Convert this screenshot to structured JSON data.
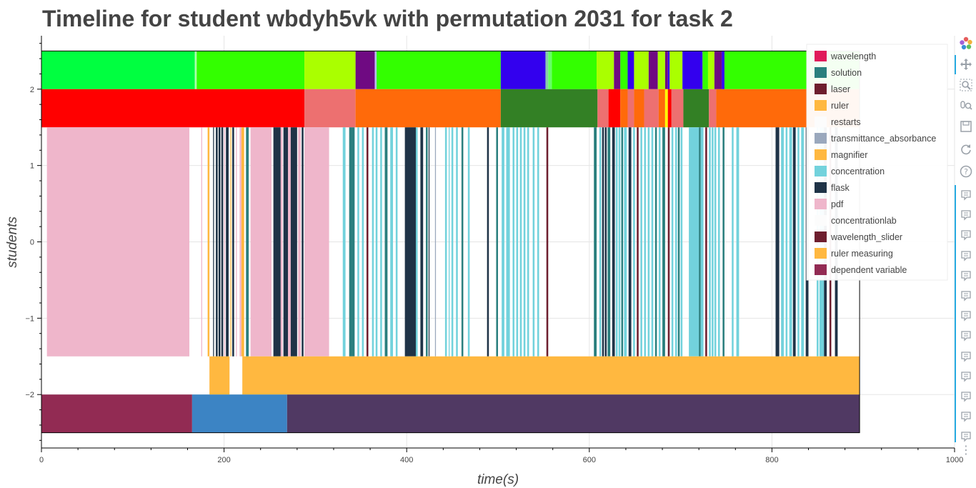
{
  "title": "Timeline for student wbdyh5vk with permutation 2031 for task 2",
  "chart_data": {
    "type": "bar",
    "title": "Timeline for student wbdyh5vk with permutation 2031 for task 2",
    "xlabel": "time(s)",
    "ylabel": "students",
    "xlim": [
      0,
      1000
    ],
    "ylim": [
      -2.7,
      2.7
    ],
    "x_ticks": [
      0,
      200,
      400,
      600,
      800,
      1000
    ],
    "y_ticks": [
      -2,
      -1,
      0,
      1,
      2
    ],
    "grid": true,
    "legend_position": "top-right",
    "legend": [
      {
        "label": "wavelength",
        "color": "#e01a5a"
      },
      {
        "label": "solution",
        "color": "#2a7f7e"
      },
      {
        "label": "laser",
        "color": "#6e1e2e"
      },
      {
        "label": "ruler",
        "color": "#ffb840"
      },
      {
        "label": "restarts",
        "color": "#fcfcfc"
      },
      {
        "label": "transmittance_absorbance",
        "color": "#9aa8bd"
      },
      {
        "label": "magnifier",
        "color": "#ffb840"
      },
      {
        "label": "concentration",
        "color": "#72d2dc"
      },
      {
        "label": "flask",
        "color": "#1f3347"
      },
      {
        "label": "pdf",
        "color": "#efb6cb"
      },
      {
        "label": "concentrationlab",
        "color": "#fcfcfc"
      },
      {
        "label": "wavelength_slider",
        "color": "#6e1e2e"
      },
      {
        "label": "ruler measuring",
        "color": "#ffb840"
      },
      {
        "label": "dependent variable",
        "color": "#922b53"
      }
    ],
    "bands": [
      {
        "name": "top",
        "y": [
          2.0,
          2.5
        ],
        "segments": [
          {
            "start": 0,
            "end": 168,
            "color": "#00ff40"
          },
          {
            "start": 168,
            "end": 170,
            "color": "#aaffaa"
          },
          {
            "start": 170,
            "end": 288,
            "color": "#33ff00"
          },
          {
            "start": 288,
            "end": 344,
            "color": "#aaff00"
          },
          {
            "start": 344,
            "end": 365,
            "color": "#6f0a82"
          },
          {
            "start": 365,
            "end": 367,
            "color": "#bbbbff"
          },
          {
            "start": 367,
            "end": 503,
            "color": "#33ff00"
          },
          {
            "start": 503,
            "end": 552,
            "color": "#3300ee"
          },
          {
            "start": 552,
            "end": 555,
            "color": "#88ccaa"
          },
          {
            "start": 555,
            "end": 559,
            "color": "#66ff66"
          },
          {
            "start": 559,
            "end": 608,
            "color": "#33ff00"
          },
          {
            "start": 608,
            "end": 627,
            "color": "#aaff00"
          },
          {
            "start": 627,
            "end": 634,
            "color": "#6f0a82"
          },
          {
            "start": 634,
            "end": 642,
            "color": "#33ff00"
          },
          {
            "start": 642,
            "end": 649,
            "color": "#3300ee"
          },
          {
            "start": 649,
            "end": 665,
            "color": "#aaff00"
          },
          {
            "start": 665,
            "end": 675,
            "color": "#6f0a82"
          },
          {
            "start": 675,
            "end": 683,
            "color": "#aaff00"
          },
          {
            "start": 683,
            "end": 686,
            "color": "#6f0a82"
          },
          {
            "start": 686,
            "end": 688,
            "color": "#3300ee"
          },
          {
            "start": 688,
            "end": 702,
            "color": "#aaff00"
          },
          {
            "start": 702,
            "end": 724,
            "color": "#3300ee"
          },
          {
            "start": 724,
            "end": 730,
            "color": "#33ff00"
          },
          {
            "start": 730,
            "end": 737,
            "color": "#aaff00"
          },
          {
            "start": 737,
            "end": 745,
            "color": "#6f0a82"
          },
          {
            "start": 745,
            "end": 748,
            "color": "#3300ee"
          },
          {
            "start": 748,
            "end": 896,
            "color": "#33ff00"
          }
        ]
      },
      {
        "name": "second",
        "y": [
          1.5,
          2.0
        ],
        "segments": [
          {
            "start": 0,
            "end": 288,
            "color": "#ff0000"
          },
          {
            "start": 288,
            "end": 344,
            "color": "#ed7070"
          },
          {
            "start": 344,
            "end": 503,
            "color": "#ff6a0a"
          },
          {
            "start": 503,
            "end": 609,
            "color": "#338025"
          },
          {
            "start": 609,
            "end": 621,
            "color": "#ed7070"
          },
          {
            "start": 621,
            "end": 634,
            "color": "#ff0000"
          },
          {
            "start": 634,
            "end": 642,
            "color": "#ff6a0a"
          },
          {
            "start": 642,
            "end": 649,
            "color": "#ed7070"
          },
          {
            "start": 649,
            "end": 660,
            "color": "#ff6a0a"
          },
          {
            "start": 660,
            "end": 676,
            "color": "#ed7070"
          },
          {
            "start": 676,
            "end": 683,
            "color": "#ff6a0a"
          },
          {
            "start": 683,
            "end": 686,
            "color": "#ffff00"
          },
          {
            "start": 686,
            "end": 690,
            "color": "#ff0000"
          },
          {
            "start": 690,
            "end": 703,
            "color": "#ed7070"
          },
          {
            "start": 703,
            "end": 731,
            "color": "#338025"
          },
          {
            "start": 731,
            "end": 739,
            "color": "#ed7070"
          },
          {
            "start": 739,
            "end": 896,
            "color": "#ff6a0a"
          }
        ]
      },
      {
        "name": "actions",
        "y": [
          -1.5,
          1.5
        ],
        "segments": [
          {
            "start": 6,
            "end": 162,
            "color": "#efb6cb"
          },
          {
            "start": 175,
            "end": 176,
            "color": "#efb6cb"
          },
          {
            "start": 182,
            "end": 184,
            "color": "#ffb840"
          },
          {
            "start": 188,
            "end": 189,
            "color": "#1f3347"
          },
          {
            "start": 191,
            "end": 193,
            "color": "#1f3347"
          },
          {
            "start": 194,
            "end": 196,
            "color": "#1f3347"
          },
          {
            "start": 197,
            "end": 199,
            "color": "#1f3347"
          },
          {
            "start": 200,
            "end": 201,
            "color": "#efb6cb"
          },
          {
            "start": 202,
            "end": 205,
            "color": "#1f3347"
          },
          {
            "start": 207,
            "end": 208,
            "color": "#ffb840"
          },
          {
            "start": 209,
            "end": 211,
            "color": "#1f3347"
          },
          {
            "start": 213,
            "end": 214,
            "color": "#efb6cb"
          },
          {
            "start": 217,
            "end": 219,
            "color": "#efb6cb"
          },
          {
            "start": 219,
            "end": 222,
            "color": "#ffb840"
          },
          {
            "start": 224,
            "end": 227,
            "color": "#2a7f7e"
          },
          {
            "start": 229,
            "end": 252,
            "color": "#efb6cb"
          },
          {
            "start": 254,
            "end": 262,
            "color": "#1f3347"
          },
          {
            "start": 262,
            "end": 264,
            "color": "#efb6cb"
          },
          {
            "start": 265,
            "end": 270,
            "color": "#1f3347"
          },
          {
            "start": 270,
            "end": 273,
            "color": "#efb6cb"
          },
          {
            "start": 273,
            "end": 280,
            "color": "#1f3347"
          },
          {
            "start": 281,
            "end": 284,
            "color": "#efb6cb"
          },
          {
            "start": 285,
            "end": 287,
            "color": "#1f3347"
          },
          {
            "start": 288,
            "end": 315,
            "color": "#efb6cb"
          },
          {
            "start": 330,
            "end": 333,
            "color": "#72d2dc"
          },
          {
            "start": 337,
            "end": 343,
            "color": "#2a7f7e"
          },
          {
            "start": 346,
            "end": 348,
            "color": "#72d2dc"
          },
          {
            "start": 351,
            "end": 353,
            "color": "#72d2dc"
          },
          {
            "start": 356,
            "end": 358,
            "color": "#6e1e2e"
          },
          {
            "start": 362,
            "end": 364,
            "color": "#72d2dc"
          },
          {
            "start": 366,
            "end": 368,
            "color": "#72d2dc"
          },
          {
            "start": 371,
            "end": 373,
            "color": "#72d2dc"
          },
          {
            "start": 376,
            "end": 379,
            "color": "#2a7f7e"
          },
          {
            "start": 382,
            "end": 385,
            "color": "#72d2dc"
          },
          {
            "start": 388,
            "end": 390,
            "color": "#72d2dc"
          },
          {
            "start": 398,
            "end": 410,
            "color": "#1f3347"
          },
          {
            "start": 410,
            "end": 412,
            "color": "#72d2dc"
          },
          {
            "start": 415,
            "end": 418,
            "color": "#1f3347"
          },
          {
            "start": 421,
            "end": 423,
            "color": "#2a7f7e"
          },
          {
            "start": 424,
            "end": 425,
            "color": "#1f3347"
          },
          {
            "start": 431,
            "end": 432,
            "color": "#9aa8bd"
          },
          {
            "start": 442,
            "end": 444,
            "color": "#72d2dc"
          },
          {
            "start": 446,
            "end": 447,
            "color": "#72d2dc"
          },
          {
            "start": 449,
            "end": 451,
            "color": "#72d2dc"
          },
          {
            "start": 454,
            "end": 456,
            "color": "#72d2dc"
          },
          {
            "start": 460,
            "end": 462,
            "color": "#2a7f7e"
          },
          {
            "start": 467,
            "end": 469,
            "color": "#72d2dc"
          },
          {
            "start": 488,
            "end": 490,
            "color": "#1f3347"
          },
          {
            "start": 498,
            "end": 500,
            "color": "#2a7f7e"
          },
          {
            "start": 504,
            "end": 507,
            "color": "#72d2dc"
          },
          {
            "start": 509,
            "end": 513,
            "color": "#72d2dc"
          },
          {
            "start": 516,
            "end": 518,
            "color": "#72d2dc"
          },
          {
            "start": 520,
            "end": 522,
            "color": "#72d2dc"
          },
          {
            "start": 524,
            "end": 526,
            "color": "#72d2dc"
          },
          {
            "start": 528,
            "end": 530,
            "color": "#72d2dc"
          },
          {
            "start": 532,
            "end": 534,
            "color": "#72d2dc"
          },
          {
            "start": 538,
            "end": 540,
            "color": "#72d2dc"
          },
          {
            "start": 543,
            "end": 545,
            "color": "#72d2dc"
          },
          {
            "start": 553,
            "end": 555,
            "color": "#6e1e2e"
          },
          {
            "start": 605,
            "end": 608,
            "color": "#2a7f7e"
          },
          {
            "start": 611,
            "end": 613,
            "color": "#72d2dc"
          },
          {
            "start": 614,
            "end": 616,
            "color": "#1f3347"
          },
          {
            "start": 617,
            "end": 619,
            "color": "#1f3347"
          },
          {
            "start": 620,
            "end": 623,
            "color": "#2a7f7e"
          },
          {
            "start": 625,
            "end": 628,
            "color": "#1f3347"
          },
          {
            "start": 629,
            "end": 631,
            "color": "#72d2dc"
          },
          {
            "start": 632,
            "end": 634,
            "color": "#72d2dc"
          },
          {
            "start": 635,
            "end": 637,
            "color": "#2a7f7e"
          },
          {
            "start": 638,
            "end": 641,
            "color": "#72d2dc"
          },
          {
            "start": 643,
            "end": 646,
            "color": "#1f3347"
          },
          {
            "start": 648,
            "end": 650,
            "color": "#72d2dc"
          },
          {
            "start": 652,
            "end": 654,
            "color": "#6e1e2e"
          },
          {
            "start": 656,
            "end": 658,
            "color": "#72d2dc"
          },
          {
            "start": 660,
            "end": 662,
            "color": "#72d2dc"
          },
          {
            "start": 664,
            "end": 666,
            "color": "#72d2dc"
          },
          {
            "start": 668,
            "end": 670,
            "color": "#72d2dc"
          },
          {
            "start": 672,
            "end": 674,
            "color": "#2a7f7e"
          },
          {
            "start": 676,
            "end": 678,
            "color": "#72d2dc"
          },
          {
            "start": 680,
            "end": 683,
            "color": "#2a7f7e"
          },
          {
            "start": 686,
            "end": 688,
            "color": "#6e1e2e"
          },
          {
            "start": 690,
            "end": 692,
            "color": "#72d2dc"
          },
          {
            "start": 694,
            "end": 696,
            "color": "#72d2dc"
          },
          {
            "start": 697,
            "end": 699,
            "color": "#2a7f7e"
          },
          {
            "start": 700,
            "end": 702,
            "color": "#72d2dc"
          },
          {
            "start": 709,
            "end": 720,
            "color": "#72d2dc"
          },
          {
            "start": 720,
            "end": 722,
            "color": "#2a7f7e"
          },
          {
            "start": 722,
            "end": 725,
            "color": "#72d2dc"
          },
          {
            "start": 727,
            "end": 729,
            "color": "#6e1e2e"
          },
          {
            "start": 731,
            "end": 733,
            "color": "#72d2dc"
          },
          {
            "start": 734,
            "end": 736,
            "color": "#72d2dc"
          },
          {
            "start": 737,
            "end": 739,
            "color": "#72d2dc"
          },
          {
            "start": 741,
            "end": 743,
            "color": "#72d2dc"
          },
          {
            "start": 746,
            "end": 748,
            "color": "#2a7f7e"
          },
          {
            "start": 756,
            "end": 758,
            "color": "#72d2dc"
          },
          {
            "start": 761,
            "end": 764,
            "color": "#72d2dc"
          },
          {
            "start": 804,
            "end": 808,
            "color": "#1f3347"
          },
          {
            "start": 810,
            "end": 813,
            "color": "#72d2dc"
          },
          {
            "start": 815,
            "end": 817,
            "color": "#72d2dc"
          },
          {
            "start": 819,
            "end": 822,
            "color": "#72d2dc"
          },
          {
            "start": 823,
            "end": 826,
            "color": "#1f3347"
          },
          {
            "start": 828,
            "end": 830,
            "color": "#72d2dc"
          },
          {
            "start": 832,
            "end": 835,
            "color": "#72d2dc"
          },
          {
            "start": 837,
            "end": 840,
            "color": "#1f3347"
          },
          {
            "start": 849,
            "end": 851,
            "color": "#72d2dc"
          },
          {
            "start": 852,
            "end": 857,
            "color": "#72d2dc"
          },
          {
            "start": 857,
            "end": 860,
            "color": "#1f3347"
          },
          {
            "start": 863,
            "end": 865,
            "color": "#6e1e2e"
          },
          {
            "start": 869,
            "end": 872,
            "color": "#1f3347"
          }
        ]
      },
      {
        "name": "ruler-measuring",
        "y": [
          -2.0,
          -1.5
        ],
        "segments": [
          {
            "start": 184,
            "end": 206,
            "color": "#ffb840"
          },
          {
            "start": 220,
            "end": 896,
            "color": "#ffb840"
          }
        ]
      },
      {
        "name": "bottom",
        "y": [
          -2.5,
          -2.0
        ],
        "segments": [
          {
            "start": 0,
            "end": 165,
            "color": "#922b53"
          },
          {
            "start": 165,
            "end": 269,
            "color": "#3c84c4"
          },
          {
            "start": 269,
            "end": 896,
            "color": "#503963"
          }
        ]
      }
    ],
    "frame_end": 896
  },
  "toolbar": {
    "tools": [
      "bokeh-logo-icon",
      "pan-icon",
      "box-zoom-icon",
      "wheel-zoom-icon",
      "save-icon",
      "reset-icon",
      "help-icon"
    ],
    "hover_count": 13,
    "more": "⋮"
  }
}
